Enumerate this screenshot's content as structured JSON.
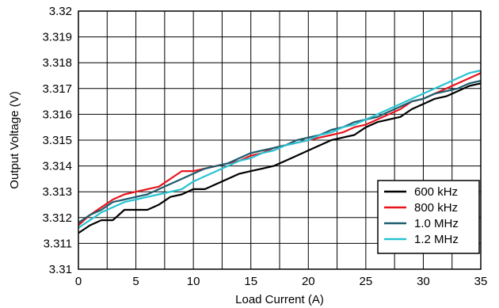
{
  "chart_data": {
    "type": "line",
    "xlabel": "Load Current (A)",
    "ylabel": "Output Voltage (V)",
    "xlim": [
      0,
      35
    ],
    "ylim": [
      3.31,
      3.32
    ],
    "x_ticks": [
      "0",
      "5",
      "10",
      "15",
      "20",
      "25",
      "30",
      "35"
    ],
    "y_ticks": [
      "3.31",
      "3.311",
      "3.312",
      "3.313",
      "3.314",
      "3.315",
      "3.316",
      "3.317",
      "3.318",
      "3.319",
      "3.32"
    ],
    "x_tick_values": [
      0,
      5,
      10,
      15,
      20,
      25,
      30,
      35
    ],
    "y_tick_values": [
      3.31,
      3.311,
      3.312,
      3.313,
      3.314,
      3.315,
      3.316,
      3.317,
      3.318,
      3.319,
      3.32
    ],
    "grid": true,
    "legend_position": "bottom-right",
    "x": [
      0,
      1,
      2,
      3,
      4,
      5,
      6,
      7,
      8,
      9,
      10,
      11,
      12,
      13,
      14,
      15,
      16,
      17,
      18,
      19,
      20,
      21,
      22,
      23,
      24,
      25,
      26,
      27,
      28,
      29,
      30,
      31,
      32,
      33,
      34,
      35
    ],
    "series": [
      {
        "name": "600 kHz",
        "color": "#000000",
        "values": [
          3.3114,
          3.3117,
          3.3119,
          3.3119,
          3.3123,
          3.3123,
          3.3123,
          3.3125,
          3.3128,
          3.3129,
          3.3131,
          3.3131,
          3.3133,
          3.3135,
          3.3137,
          3.3138,
          3.3139,
          3.314,
          3.3142,
          3.3144,
          3.3146,
          3.3148,
          3.315,
          3.3151,
          3.3152,
          3.3155,
          3.3157,
          3.3158,
          3.3159,
          3.3162,
          3.3164,
          3.3166,
          3.3167,
          3.3169,
          3.3171,
          3.3172
        ]
      },
      {
        "name": "800 kHz",
        "color": "#e8141c",
        "values": [
          3.3117,
          3.3121,
          3.3124,
          3.3127,
          3.3129,
          3.313,
          3.3131,
          3.3132,
          3.3135,
          3.3138,
          3.3138,
          3.3139,
          3.314,
          3.3141,
          3.3142,
          3.3144,
          3.3145,
          3.3147,
          3.3148,
          3.3149,
          3.315,
          3.3151,
          3.3152,
          3.3153,
          3.3155,
          3.3156,
          3.3158,
          3.316,
          3.3162,
          3.3165,
          3.3166,
          3.3168,
          3.317,
          3.3172,
          3.3174,
          3.3176
        ]
      },
      {
        "name": "1.0 MHz",
        "color": "#1e5c6e",
        "values": [
          3.3118,
          3.3121,
          3.3123,
          3.3126,
          3.3127,
          3.3128,
          3.3129,
          3.3131,
          3.3133,
          3.3135,
          3.3137,
          3.3139,
          3.314,
          3.3141,
          3.3143,
          3.3145,
          3.3146,
          3.3147,
          3.3148,
          3.315,
          3.3151,
          3.3152,
          3.3154,
          3.3155,
          3.3157,
          3.3158,
          3.3159,
          3.3161,
          3.3163,
          3.3165,
          3.3166,
          3.3168,
          3.3169,
          3.317,
          3.3172,
          3.3173
        ]
      },
      {
        "name": "1.2 MHz",
        "color": "#29c3d2",
        "values": [
          3.3116,
          3.3119,
          3.3122,
          3.3124,
          3.3126,
          3.3127,
          3.3128,
          3.3129,
          3.313,
          3.3131,
          3.3134,
          3.3136,
          3.3138,
          3.314,
          3.3142,
          3.3143,
          3.3145,
          3.3146,
          3.3148,
          3.3149,
          3.315,
          3.3152,
          3.3153,
          3.3155,
          3.3156,
          3.3158,
          3.316,
          3.3162,
          3.3164,
          3.3166,
          3.3168,
          3.317,
          3.3172,
          3.3174,
          3.3176,
          3.3177
        ]
      }
    ]
  }
}
